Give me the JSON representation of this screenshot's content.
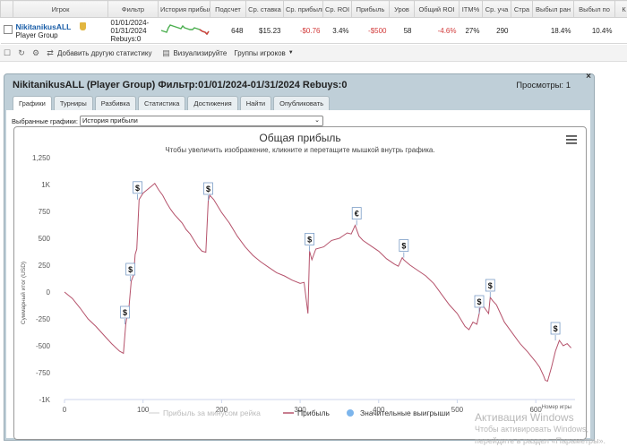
{
  "table": {
    "headers": [
      "Игрок",
      "Фильтр",
      "История прибыли",
      "Подсчет",
      "Ср. ставка",
      "Ср. прибыль",
      "Ср. ROI",
      "Прибыль",
      "Уров",
      "Общий ROI",
      "ITM%",
      "Ср. уча",
      "Стра",
      "Выбыл ран",
      "Выбыл по",
      "К"
    ],
    "row": {
      "player_name": "NikitanikusALL",
      "player_group": "Player Group",
      "filter_line1": "01/01/2024-",
      "filter_line2": "01/31/2024",
      "filter_line3": "Rebuys:0",
      "count": "648",
      "avg_stake": "$15.23",
      "avg_profit": "-$0.76",
      "avg_roi": "3.4%",
      "profit": "-$500",
      "level": "58",
      "total_roi": "-4.6%",
      "itm": "27%",
      "avg_field": "290",
      "stra": "",
      "out_early": "18.4%",
      "out_late": "10.4%"
    }
  },
  "toolbar": {
    "add_stats": "Добавить другую статистику",
    "visualize": "Визуализируйте",
    "player_groups": "Группы игроков"
  },
  "popup": {
    "title": "NikitanikusALL (Player Group) Фильтр:01/01/2024-01/31/2024 Rebuys:0",
    "views": "Просмотры: 1",
    "close": "×",
    "tabs": [
      "Графики",
      "Турниры",
      "Разбивка",
      "Статистика",
      "Достижения",
      "Найти",
      "Опубликовать"
    ],
    "select_label": "Выбранные графики:",
    "select_value": "История прибыли"
  },
  "chart_data": {
    "type": "line",
    "title": "Общая прибыль",
    "subtitle": "Чтобы увеличить изображение, кликните и перетащите мышкой внутрь графика.",
    "xlabel": "Номер игры",
    "ylabel": "Суммарный итог (USD)",
    "xlim": [
      0,
      650
    ],
    "ylim": [
      -1000,
      1250
    ],
    "x_ticks": [
      "0",
      "100",
      "200",
      "300",
      "400",
      "500",
      "600"
    ],
    "y_ticks": [
      "1,250",
      "1K",
      "750",
      "500",
      "250",
      "0",
      "-250",
      "-500",
      "-750",
      "-1K"
    ],
    "legend": [
      "Прибыль за минусом рейка",
      "Прибыль",
      "Значительные выигрыши"
    ],
    "legend_position": "bottom",
    "grid": false,
    "series": [
      {
        "name": "Прибыль",
        "color": "#b5526b",
        "x": [
          0,
          10,
          20,
          30,
          40,
          50,
          60,
          70,
          75,
          78,
          80,
          82,
          85,
          88,
          90,
          92,
          95,
          100,
          105,
          110,
          115,
          120,
          125,
          130,
          135,
          140,
          145,
          150,
          155,
          160,
          165,
          170,
          175,
          180,
          183,
          185,
          190,
          195,
          200,
          210,
          220,
          230,
          240,
          250,
          260,
          270,
          280,
          290,
          300,
          305,
          310,
          312,
          315,
          320,
          330,
          340,
          350,
          360,
          365,
          370,
          372,
          375,
          380,
          390,
          400,
          410,
          420,
          425,
          430,
          432,
          435,
          440,
          450,
          460,
          470,
          480,
          490,
          500,
          510,
          515,
          520,
          525,
          528,
          530,
          535,
          540,
          542,
          545,
          550,
          555,
          560,
          570,
          580,
          590,
          600,
          605,
          610,
          612,
          615,
          620,
          625,
          630,
          635,
          640,
          645
        ],
        "y": [
          0,
          -60,
          -150,
          -250,
          -320,
          -400,
          -480,
          -550,
          -570,
          -300,
          -200,
          -150,
          100,
          160,
          350,
          400,
          860,
          920,
          950,
          980,
          1010,
          950,
          900,
          830,
          770,
          720,
          680,
          640,
          580,
          540,
          480,
          420,
          380,
          370,
          850,
          900,
          860,
          800,
          740,
          640,
          520,
          420,
          340,
          280,
          230,
          180,
          150,
          110,
          80,
          90,
          -200,
          380,
          300,
          400,
          420,
          480,
          500,
          550,
          540,
          620,
          580,
          520,
          480,
          430,
          380,
          310,
          260,
          240,
          320,
          300,
          280,
          250,
          200,
          150,
          80,
          -20,
          -120,
          -200,
          -320,
          -350,
          -280,
          -300,
          -200,
          -100,
          -150,
          -200,
          -50,
          -80,
          -120,
          -200,
          -280,
          -380,
          -480,
          -560,
          -650,
          -700,
          -780,
          -820,
          -830,
          -700,
          -550,
          -450,
          -500,
          -480,
          -520
        ]
      }
    ],
    "significant_wins": [
      {
        "x": 77,
        "y": -300,
        "symbol": "$"
      },
      {
        "x": 84,
        "y": 100,
        "symbol": "$"
      },
      {
        "x": 93,
        "y": 860,
        "symbol": "$"
      },
      {
        "x": 183,
        "y": 850,
        "symbol": "$"
      },
      {
        "x": 312,
        "y": 380,
        "symbol": "$"
      },
      {
        "x": 372,
        "y": 620,
        "symbol": "€"
      },
      {
        "x": 432,
        "y": 320,
        "symbol": "$"
      },
      {
        "x": 528,
        "y": -200,
        "symbol": "$"
      },
      {
        "x": 542,
        "y": -50,
        "symbol": "$"
      },
      {
        "x": 625,
        "y": -450,
        "symbol": "$"
      }
    ]
  },
  "watermark": {
    "line1": "Активация Windows",
    "line2": "Чтобы активировать Windows, перейдите в раздел «Параметры»."
  }
}
